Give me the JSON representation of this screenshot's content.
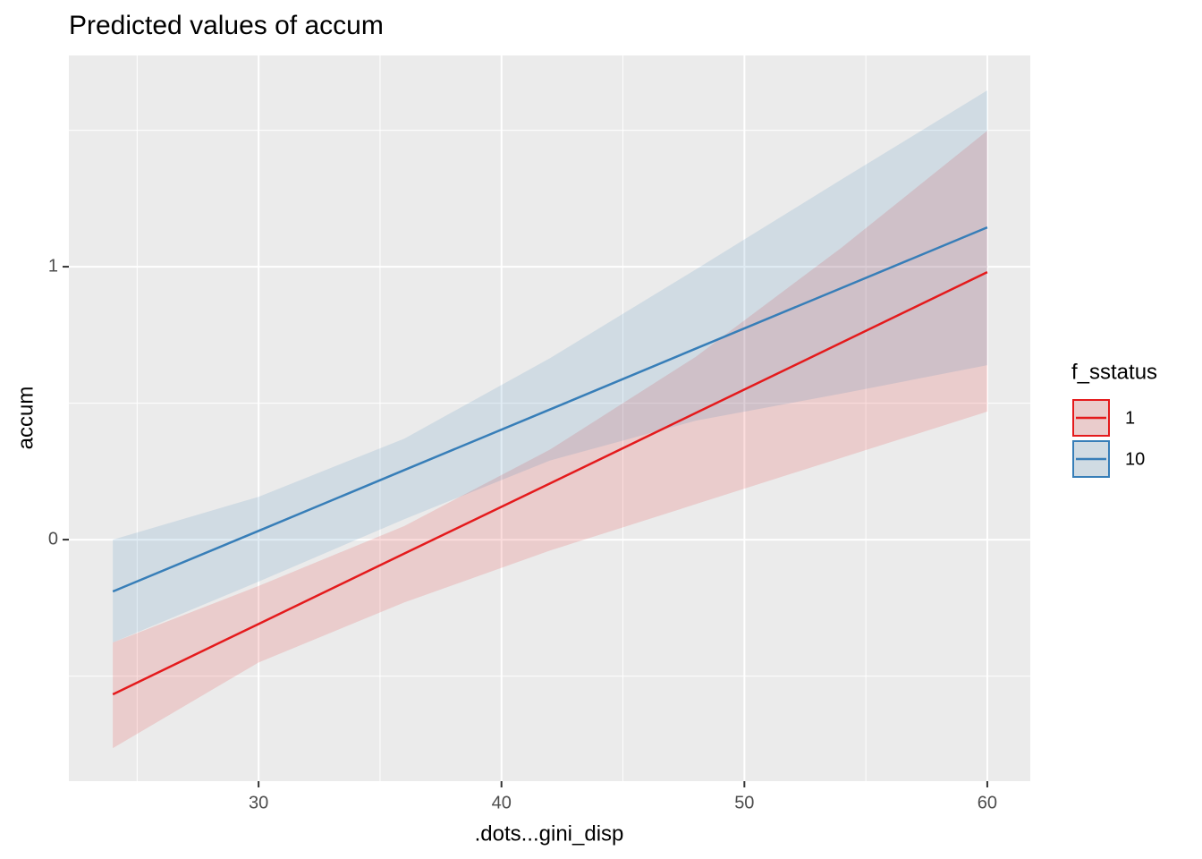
{
  "chart_data": {
    "type": "line",
    "title": "Predicted values of accum",
    "x_label": ".dots...gini_disp",
    "y_label": "accum",
    "legend_title": "f_sstatus",
    "legend_position": "right",
    "grid": true,
    "x": [
      24,
      30,
      36,
      42,
      48,
      54,
      60
    ],
    "xlim": [
      22.19,
      61.77
    ],
    "xticks": [
      30,
      40,
      50,
      60
    ],
    "x_minor_ticks": [
      25,
      35,
      45,
      55
    ],
    "ylim": [
      -0.885,
      1.774
    ],
    "yticks": [
      0,
      1
    ],
    "y_minor_ticks": [
      -0.5,
      0.5,
      1.5
    ],
    "series": [
      {
        "name": "1",
        "color": "#e41a1c",
        "values": [
          -0.567,
          -0.309,
          -0.051,
          0.206,
          0.464,
          0.722,
          0.98
        ],
        "lower": [
          -0.764,
          -0.45,
          -0.23,
          -0.04,
          0.13,
          0.3,
          0.469
        ],
        "upper": [
          -0.377,
          -0.17,
          0.05,
          0.33,
          0.67,
          1.07,
          1.498
        ]
      },
      {
        "name": "10",
        "color": "#377eb8",
        "values": [
          -0.19,
          0.032,
          0.255,
          0.477,
          0.7,
          0.922,
          1.144
        ],
        "lower": [
          -0.377,
          -0.154,
          0.075,
          0.29,
          0.436,
          0.535,
          0.639
        ],
        "upper": [
          0.0,
          0.157,
          0.37,
          0.665,
          0.99,
          1.32,
          1.646
        ]
      }
    ]
  }
}
